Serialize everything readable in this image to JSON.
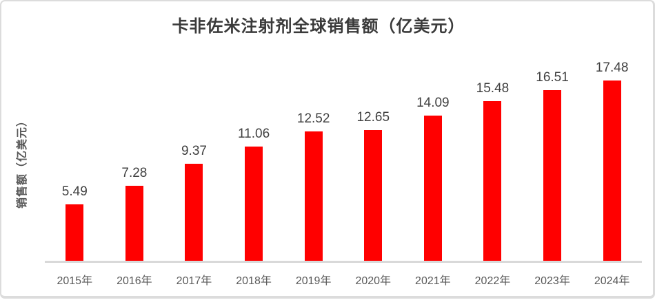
{
  "colors": {
    "bar": "#ff0000",
    "axis_line": "#d9d9d9",
    "title_text": "#3a3a3a",
    "value_label_text": "#404040",
    "axis_label_text": "#595959",
    "card_border": "#dcdcdc",
    "background": "#ffffff"
  },
  "chart_data": {
    "type": "bar",
    "title": "卡非佐米注射剂全球销售额（亿美元）",
    "xlabel": "",
    "ylabel": "销售额（亿美元）",
    "categories": [
      "2015年",
      "2016年",
      "2017年",
      "2018年",
      "2019年",
      "2020年",
      "2021年",
      "2022年",
      "2023年",
      "2024年"
    ],
    "values": [
      5.49,
      7.28,
      9.37,
      11.06,
      12.52,
      12.65,
      14.09,
      15.48,
      16.51,
      17.48
    ],
    "series": [
      {
        "name": "销售额（亿美元）",
        "values": [
          5.49,
          7.28,
          9.37,
          11.06,
          12.52,
          12.65,
          14.09,
          15.48,
          16.51,
          17.48
        ]
      }
    ],
    "ylim": [
      0,
      18
    ],
    "grid": false,
    "legend": false,
    "data_labels": true,
    "bar_color": "#ff0000"
  }
}
